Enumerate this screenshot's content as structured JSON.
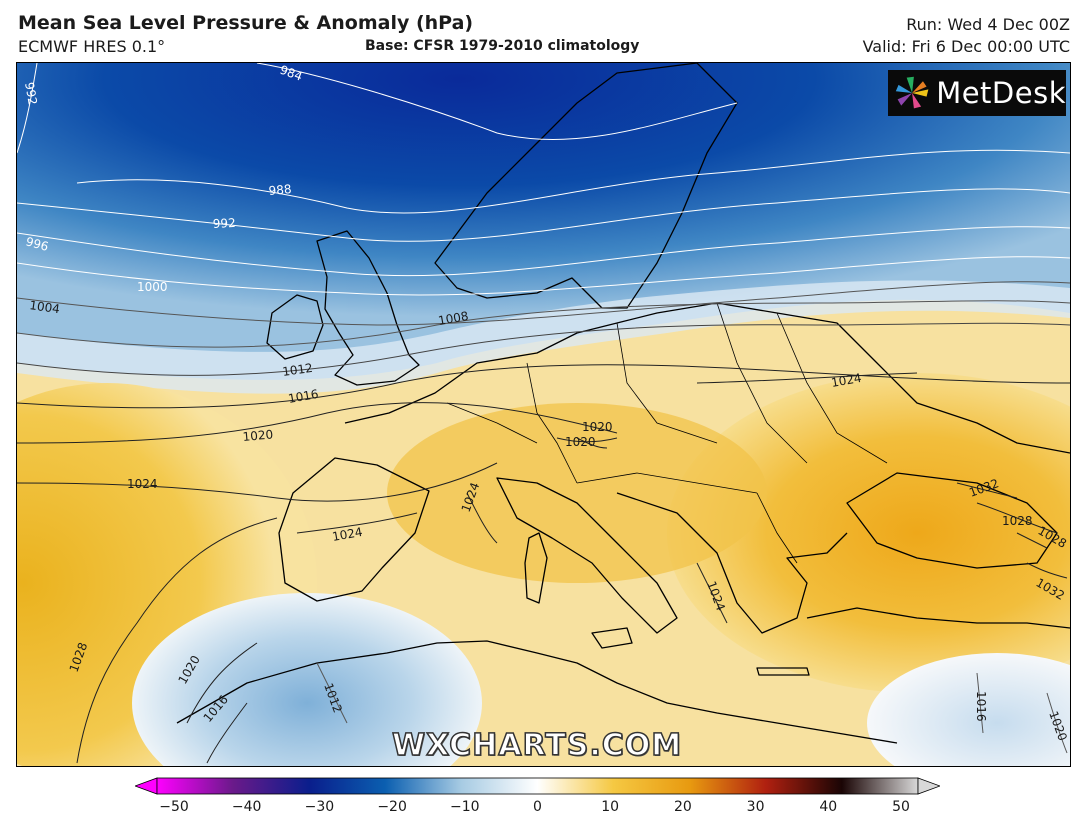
{
  "header": {
    "title": "Mean Sea Level Pressure & Anomaly (hPa)",
    "model": "ECMWF HRES 0.1°",
    "base": "Base: CFSR 1979-2010 climatology",
    "run": "Run: Wed 4 Dec 00Z",
    "valid": "Valid: Fri 6 Dec 00:00 UTC"
  },
  "logo": {
    "text": "MetDesk",
    "icon": "metdesk-pinwheel-icon"
  },
  "watermark": "WXCHARTS.COM",
  "colorbar": {
    "min": -50,
    "max": 50,
    "ticks": [
      "−50",
      "−40",
      "−30",
      "−20",
      "−10",
      "0",
      "10",
      "20",
      "30",
      "40",
      "50"
    ],
    "colors": [
      "#ff00ff",
      "#6a1a8a",
      "#0a1e8c",
      "#0b5fb0",
      "#a7cbe3",
      "#ffffff",
      "#f5c842",
      "#e89a10",
      "#b02010",
      "#1a0505",
      "#d8d8d8"
    ]
  },
  "isobars": {
    "labels": [
      "984",
      "988",
      "992",
      "992",
      "996",
      "1000",
      "1004",
      "1008",
      "1012",
      "1016",
      "1020",
      "1020",
      "1024",
      "1024",
      "1024",
      "1024",
      "1028",
      "1028",
      "1020",
      "1016",
      "1012",
      "1032",
      "1028",
      "1032",
      "1016",
      "1020",
      "1024",
      "1020"
    ]
  }
}
